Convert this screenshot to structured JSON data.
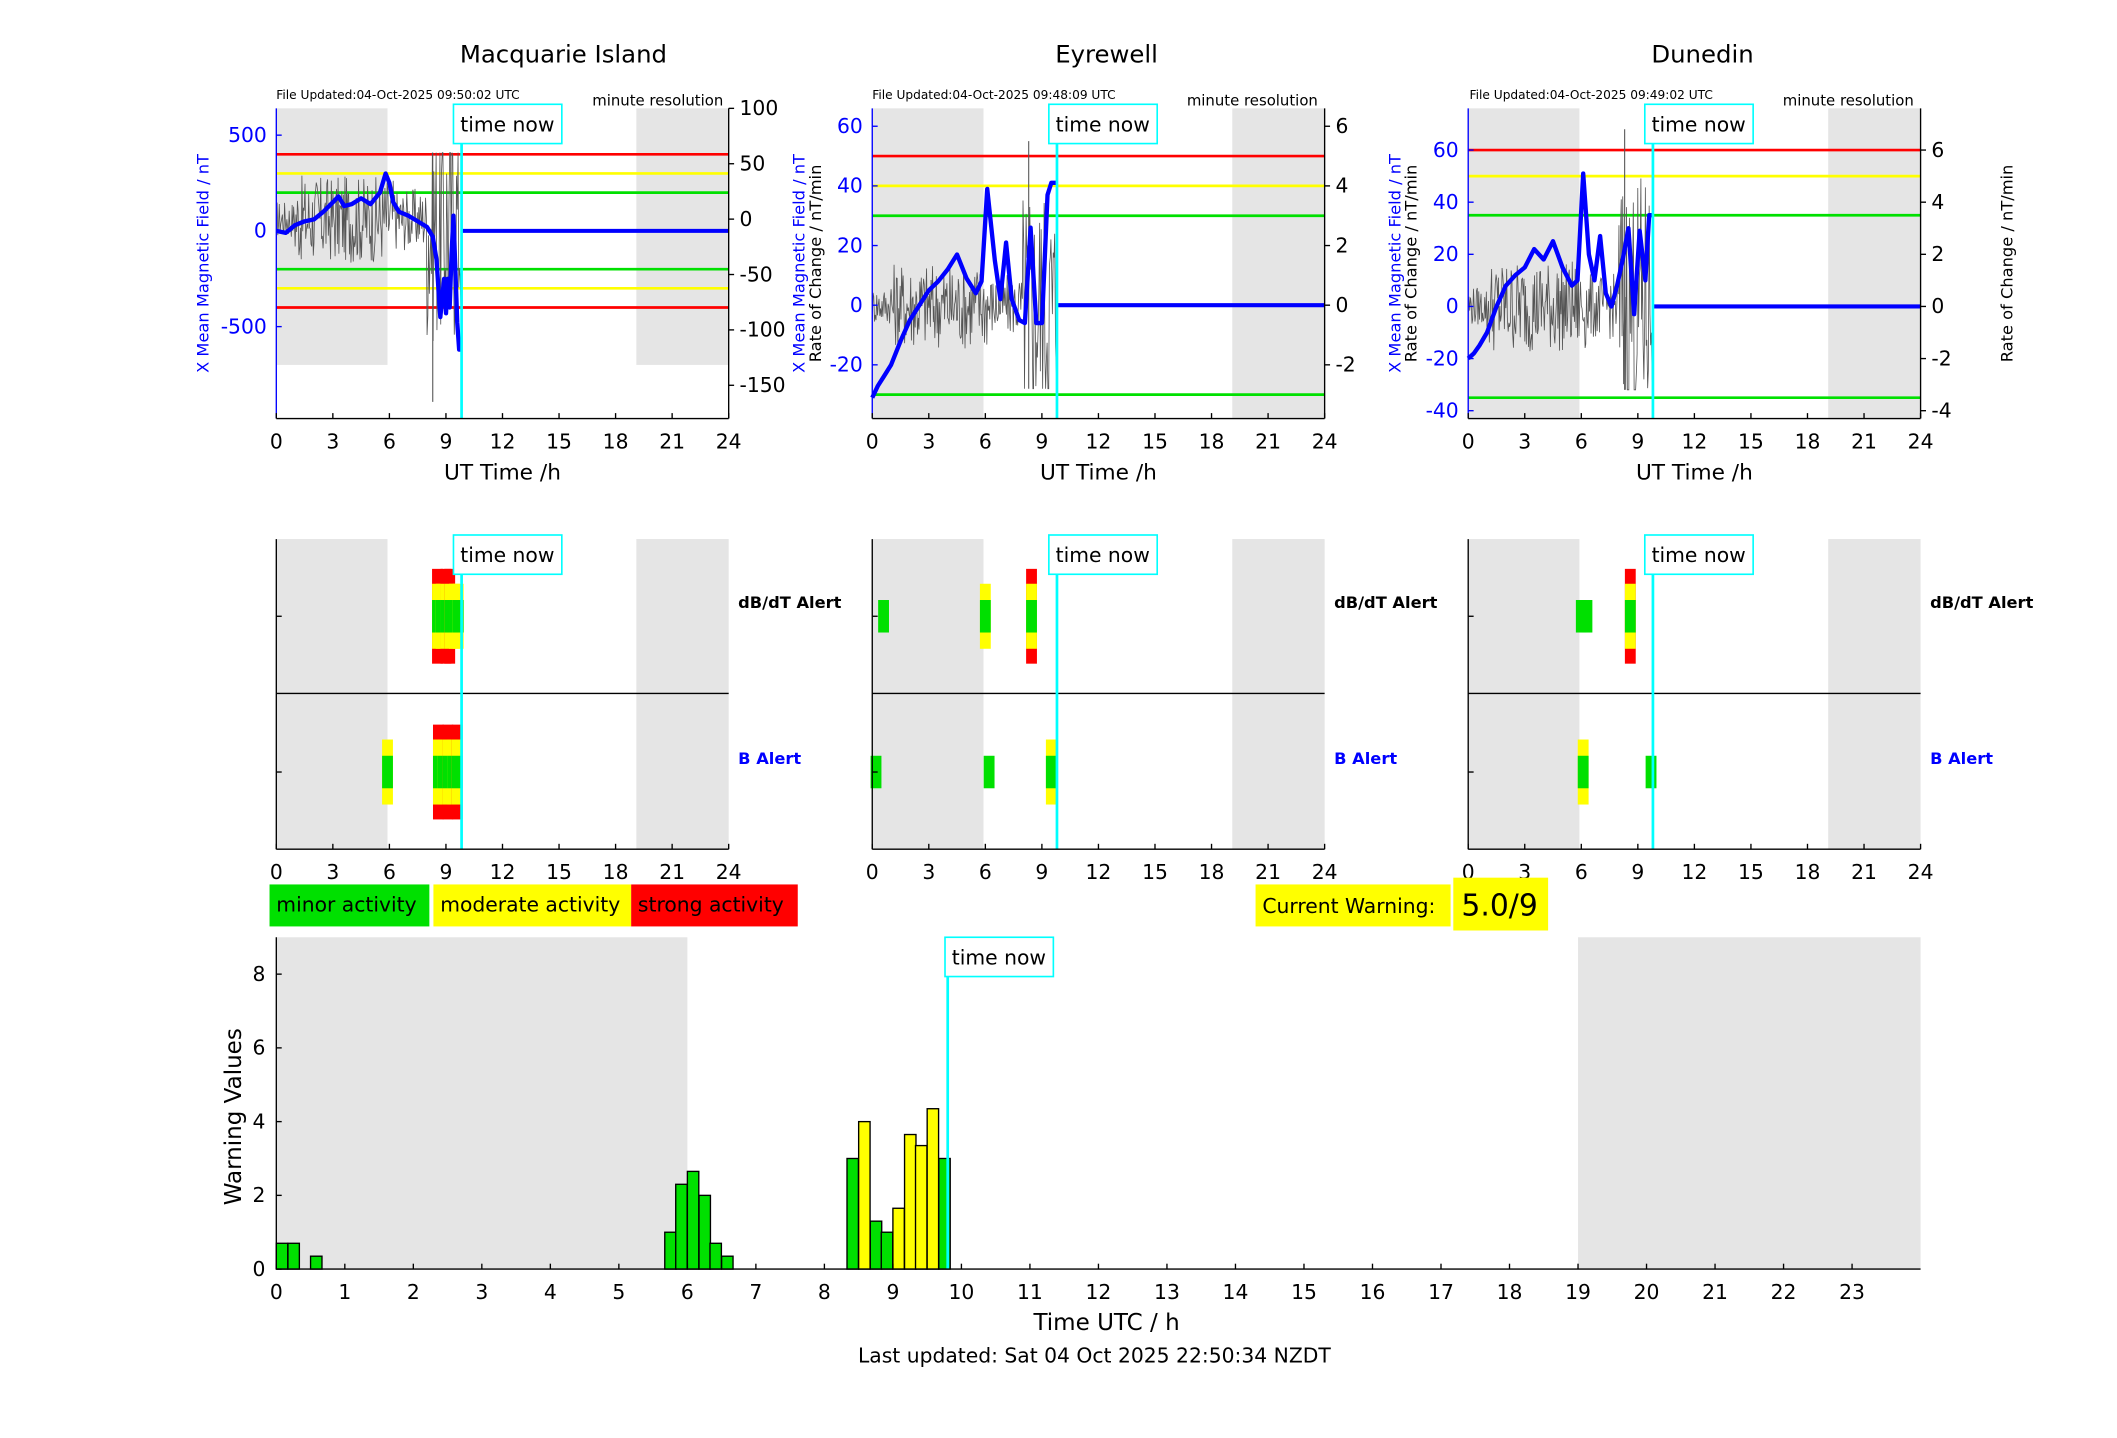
{
  "colors": {
    "blue": "#0000ff",
    "cyan": "#00ffff",
    "red": "#ff0000",
    "yellow": "#ffff00",
    "green": "#00e000",
    "night_shade": "#e5e5e5",
    "rate_line": "#555555"
  },
  "time_now_label": "time now",
  "x_axis_label": "UT Time /h",
  "alert_row_labels": {
    "dbdt": "dB/dT Alert",
    "b": "B Alert"
  },
  "legend": {
    "minor": "minor activity",
    "moderate": "moderate activity",
    "strong": "strong activity"
  },
  "current_warning": {
    "label": "Current Warning:",
    "value": "5.0/9"
  },
  "footer": "Last updated: Sat 04 Oct 2025 22:50:34 NZDT",
  "chart_data": [
    {
      "type": "line",
      "title": "Macquarie Island",
      "file_updated": "File Updated:04-Oct-2025 09:50:02 UTC",
      "resolution": "minute resolution",
      "xlabel": "UT Time /h",
      "ylabel_left": "X Mean Magnetic Field / nT",
      "ylabel_right": "Rate of Change / nT/min",
      "xlim": [
        0,
        24
      ],
      "ylim_left": [
        -980,
        640
      ],
      "ylim_right": [
        -180,
        100
      ],
      "x_ticks": [
        "0",
        "3",
        "6",
        "9",
        "12",
        "15",
        "18",
        "21",
        "24"
      ],
      "yticks_left": [
        "500",
        "0",
        "-500"
      ],
      "yticks_right": [
        "100",
        "50",
        "0",
        "-50",
        "-100",
        "-150"
      ],
      "thresholds": {
        "red": 400,
        "yellow": 300,
        "green": 200
      },
      "time_now": 9.83,
      "night_shading": [
        [
          0,
          5.9
        ],
        [
          19.1,
          24
        ]
      ],
      "x_field": {
        "x": [
          0,
          0.5,
          1,
          1.5,
          2,
          2.5,
          3,
          3.3,
          3.6,
          4,
          4.5,
          5,
          5.5,
          5.8,
          6,
          6.2,
          6.5,
          7,
          7.5,
          8,
          8.3,
          8.5,
          8.7,
          8.9,
          9,
          9.1,
          9.2,
          9.3,
          9.4,
          9.6,
          9.7,
          9.83
        ],
        "y": [
          0,
          -10,
          30,
          50,
          60,
          100,
          150,
          180,
          130,
          140,
          170,
          140,
          200,
          300,
          250,
          150,
          100,
          80,
          50,
          20,
          -30,
          -150,
          -450,
          -250,
          -430,
          -250,
          -400,
          -120,
          80,
          -480,
          -620,
          -620
        ]
      },
      "rate_of_change_range": [
        -165,
        60
      ]
    },
    {
      "type": "line",
      "title": "Eyrewell",
      "file_updated": "File Updated:04-Oct-2025 09:48:09 UTC",
      "resolution": "minute resolution",
      "xlabel": "UT Time /h",
      "ylabel_left": "X Mean Magnetic Field / nT",
      "ylabel_right": "Rate of Change / nT/min",
      "xlim": [
        0,
        24
      ],
      "ylim_left": [
        -38,
        66
      ],
      "ylim_right": [
        -3.8,
        6.6
      ],
      "x_ticks": [
        "0",
        "3",
        "6",
        "9",
        "12",
        "15",
        "18",
        "21",
        "24"
      ],
      "yticks_left": [
        "60",
        "40",
        "20",
        "0",
        "-20"
      ],
      "yticks_right": [
        "6",
        "4",
        "2",
        "0",
        "-2"
      ],
      "thresholds": {
        "red": 50,
        "yellow": 40,
        "green": 30
      },
      "time_now": 9.8,
      "night_shading": [
        [
          0,
          5.9
        ],
        [
          19.1,
          24
        ]
      ],
      "x_field": {
        "x": [
          0,
          0.3,
          0.6,
          1,
          1.5,
          2,
          2.5,
          3,
          3.5,
          4,
          4.5,
          5,
          5.5,
          5.8,
          6.1,
          6.5,
          6.8,
          7.1,
          7.4,
          7.8,
          8.1,
          8.4,
          8.7,
          9.0,
          9.3,
          9.5,
          9.8
        ],
        "y": [
          -31,
          -27,
          -24,
          -20,
          -12,
          -5,
          0,
          5,
          8,
          12,
          17,
          9,
          4,
          8,
          39,
          15,
          2,
          21,
          2,
          -5,
          -6,
          26,
          -6,
          -6,
          37,
          41,
          41
        ]
      },
      "rate_of_change_range": [
        -2.8,
        5.5
      ]
    },
    {
      "type": "line",
      "title": "Dunedin",
      "file_updated": "File Updated:04-Oct-2025 09:49:02 UTC",
      "resolution": "minute resolution",
      "xlabel": "UT Time /h",
      "ylabel_left": "X Mean Magnetic Field / nT",
      "ylabel_right": "Rate of Change / nT/min",
      "xlim": [
        0,
        24
      ],
      "ylim_left": [
        -43,
        76
      ],
      "ylim_right": [
        -4.3,
        7.6
      ],
      "x_ticks": [
        "0",
        "3",
        "6",
        "9",
        "12",
        "15",
        "18",
        "21",
        "24"
      ],
      "yticks_left": [
        "60",
        "40",
        "20",
        "0",
        "-20",
        "-40"
      ],
      "yticks_right": [
        "6",
        "4",
        "2",
        "0",
        "-2",
        "-4"
      ],
      "thresholds": {
        "red": 60,
        "yellow": 50,
        "green": 35
      },
      "time_now": 9.8,
      "night_shading": [
        [
          0,
          5.9
        ],
        [
          19.1,
          24
        ]
      ],
      "x_field": {
        "x": [
          0,
          0.3,
          0.6,
          1,
          1.5,
          2,
          2.5,
          3,
          3.5,
          4,
          4.5,
          5,
          5.5,
          5.8,
          6.1,
          6.4,
          6.7,
          7.0,
          7.3,
          7.6,
          7.9,
          8.2,
          8.5,
          8.8,
          9.1,
          9.4,
          9.6,
          9.8
        ],
        "y": [
          -20,
          -18,
          -15,
          -10,
          0,
          8,
          12,
          15,
          22,
          18,
          25,
          15,
          8,
          10,
          51,
          20,
          10,
          27,
          5,
          0,
          8,
          18,
          30,
          -3,
          29,
          10,
          35,
          35
        ]
      },
      "rate_of_change_range": [
        -3.2,
        6.8
      ]
    },
    {
      "type": "bar",
      "title": "",
      "xlabel": "Time UTC / h",
      "ylabel": "Warning Values",
      "xlim": [
        0,
        24
      ],
      "ylim": [
        0,
        9
      ],
      "x_ticks": [
        "0",
        "1",
        "2",
        "3",
        "4",
        "5",
        "6",
        "7",
        "8",
        "9",
        "10",
        "11",
        "12",
        "13",
        "14",
        "15",
        "16",
        "17",
        "18",
        "19",
        "20",
        "21",
        "22",
        "23"
      ],
      "y_ticks": [
        "0",
        "2",
        "4",
        "6",
        "8"
      ],
      "time_now": 9.8,
      "night_shading": [
        [
          0,
          6.0
        ],
        [
          19.0,
          24
        ]
      ],
      "bars": [
        {
          "t": 0.0,
          "value": 0.7,
          "level": "minor"
        },
        {
          "t": 0.17,
          "value": 0.7,
          "level": "minor"
        },
        {
          "t": 0.5,
          "value": 0.35,
          "level": "minor"
        },
        {
          "t": 5.67,
          "value": 1.0,
          "level": "minor"
        },
        {
          "t": 5.83,
          "value": 2.3,
          "level": "minor"
        },
        {
          "t": 6.0,
          "value": 2.65,
          "level": "minor"
        },
        {
          "t": 6.17,
          "value": 2.0,
          "level": "minor"
        },
        {
          "t": 6.33,
          "value": 0.7,
          "level": "minor"
        },
        {
          "t": 6.5,
          "value": 0.35,
          "level": "minor"
        },
        {
          "t": 8.33,
          "value": 3.0,
          "level": "minor"
        },
        {
          "t": 8.5,
          "value": 4.0,
          "level": "moderate"
        },
        {
          "t": 8.67,
          "value": 1.3,
          "level": "minor"
        },
        {
          "t": 8.83,
          "value": 1.0,
          "level": "minor"
        },
        {
          "t": 9.0,
          "value": 1.65,
          "level": "moderate"
        },
        {
          "t": 9.17,
          "value": 3.65,
          "level": "moderate"
        },
        {
          "t": 9.33,
          "value": 3.35,
          "level": "moderate"
        },
        {
          "t": 9.5,
          "value": 4.35,
          "level": "moderate"
        },
        {
          "t": 9.67,
          "value": 3.0,
          "level": "minor"
        }
      ]
    }
  ],
  "alert_panels": [
    {
      "station": "Macquarie Island",
      "time_now": 9.83,
      "dbdt": [
        {
          "t": 8.55,
          "level": "strong"
        },
        {
          "t": 8.75,
          "level": "moderate"
        },
        {
          "t": 9.0,
          "level": "strong"
        },
        {
          "t": 9.2,
          "level": "strong"
        },
        {
          "t": 9.45,
          "level": "moderate"
        },
        {
          "t": 9.65,
          "level": "moderate"
        }
      ],
      "b": [
        {
          "t": 5.9,
          "level": "moderate"
        },
        {
          "t": 8.6,
          "level": "strong"
        },
        {
          "t": 8.85,
          "level": "moderate"
        },
        {
          "t": 9.1,
          "level": "strong"
        },
        {
          "t": 9.35,
          "level": "moderate"
        },
        {
          "t": 9.6,
          "level": "strong"
        }
      ]
    },
    {
      "station": "Eyrewell",
      "time_now": 9.8,
      "dbdt": [
        {
          "t": 0.6,
          "level": "minor"
        },
        {
          "t": 6.0,
          "level": "moderate"
        },
        {
          "t": 8.45,
          "level": "strong"
        }
      ],
      "b": [
        {
          "t": 0.2,
          "level": "minor"
        },
        {
          "t": 6.2,
          "level": "minor"
        },
        {
          "t": 9.5,
          "level": "moderate"
        }
      ]
    },
    {
      "station": "Dunedin",
      "time_now": 9.8,
      "dbdt": [
        {
          "t": 6.0,
          "level": "minor"
        },
        {
          "t": 6.3,
          "level": "minor"
        },
        {
          "t": 8.6,
          "level": "strong"
        }
      ],
      "b": [
        {
          "t": 6.1,
          "level": "moderate"
        },
        {
          "t": 9.7,
          "level": "minor"
        }
      ]
    }
  ]
}
